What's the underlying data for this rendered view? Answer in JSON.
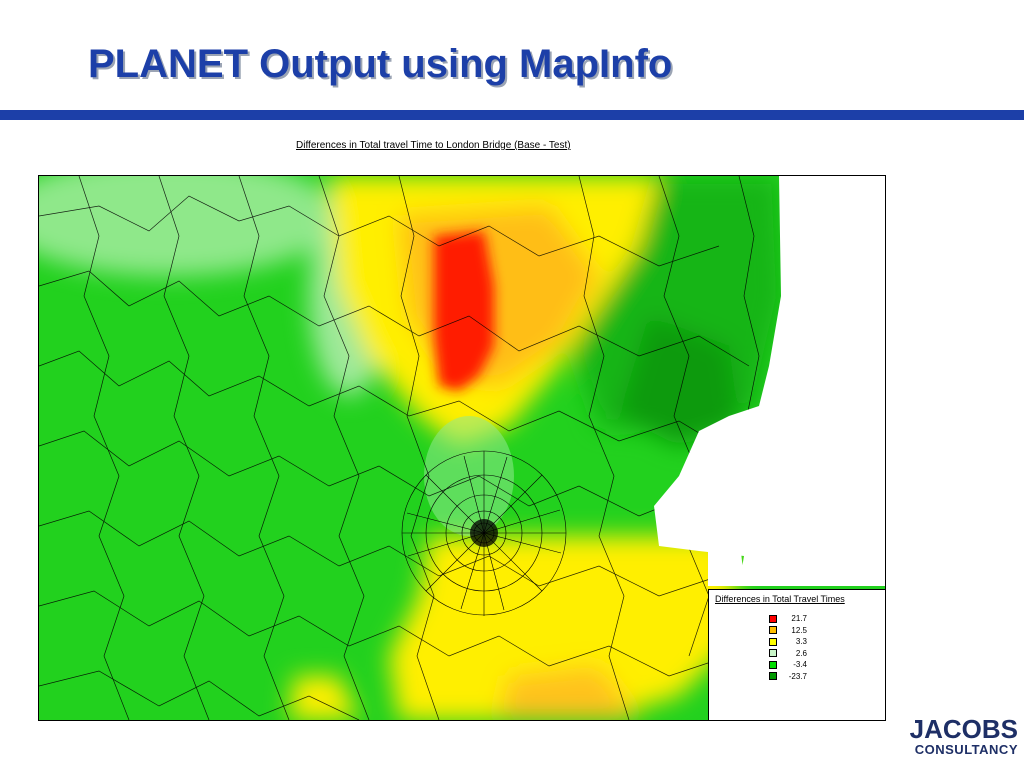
{
  "slide": {
    "title": "PLANET Output using MapInfo"
  },
  "map": {
    "caption": "Differences in Total travel Time to London Bridge (Base - Test)",
    "legend": {
      "title": "Differences in Total Travel Times",
      "items": [
        {
          "value": "21.7",
          "color": "#ff0000"
        },
        {
          "value": "12.5",
          "color": "#ffbf00"
        },
        {
          "value": "3.3",
          "color": "#ffff00"
        },
        {
          "value": "2.6",
          "color": "#c8f5c8"
        },
        {
          "value": "-3.4",
          "color": "#00dd00"
        },
        {
          "value": "-23.7",
          "color": "#009900"
        }
      ]
    }
  },
  "logo": {
    "line1": "JACOBS",
    "line2": "CONSULTANCY"
  }
}
